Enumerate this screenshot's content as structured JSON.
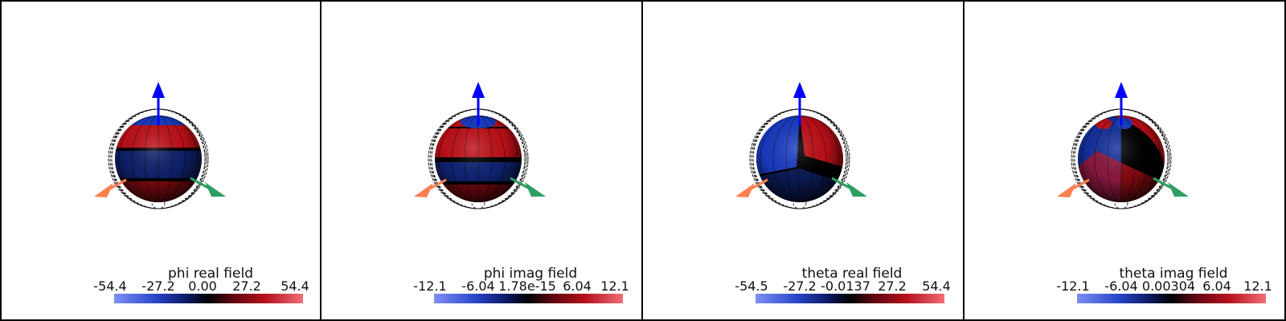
{
  "panels": [
    {
      "name": "phi-real",
      "title": "phi real field",
      "ticks": [
        "-54.4",
        "-27.2",
        "0.00",
        "27.2",
        "54.4"
      ],
      "pattern": "bands"
    },
    {
      "name": "phi-imag",
      "title": "phi imag field",
      "ticks": [
        "-12.1",
        "-6.04",
        "1.78e-15",
        "6.04",
        "12.1"
      ],
      "pattern": "bands-inv"
    },
    {
      "name": "theta-real",
      "title": "theta real field",
      "ticks": [
        "-54.5",
        "-27.2",
        "-0.0137",
        "27.2",
        "54.4"
      ],
      "pattern": "quadrant"
    },
    {
      "name": "theta-imag",
      "title": "theta imag field",
      "ticks": [
        "-12.1",
        "-6.04",
        "0.00304",
        "6.04",
        "12.1"
      ],
      "pattern": "swirl"
    }
  ],
  "colors": {
    "axis_z": "#0000ff",
    "axis_x": "#ff7f50",
    "axis_y": "#2e9e63",
    "field_negative": "#1a3cc4",
    "field_positive": "#c01018",
    "field_zero": "#000000"
  }
}
